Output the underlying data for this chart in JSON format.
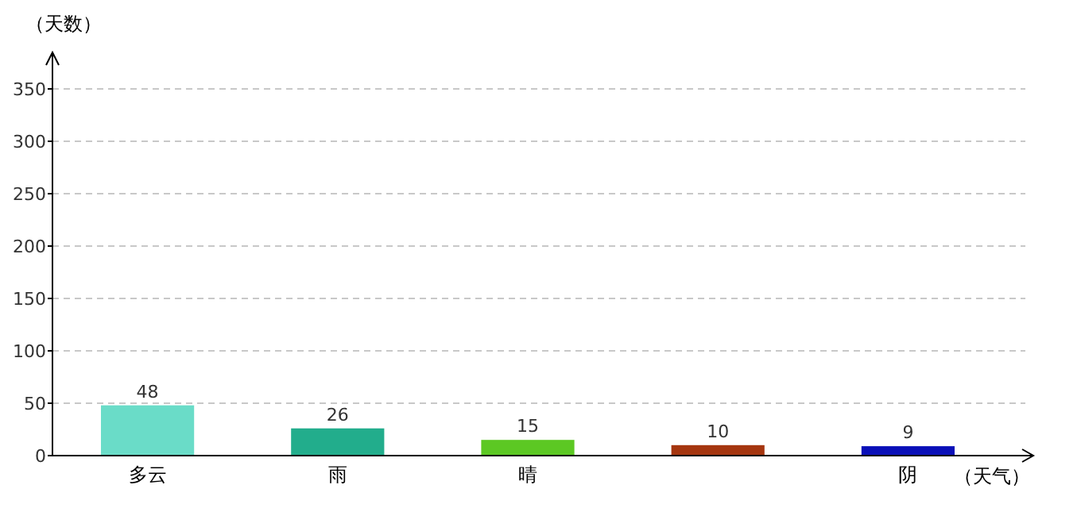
{
  "chart_data": {
    "type": "bar",
    "xlabel": "（天气）",
    "ylabel": "（天数）",
    "categories": [
      "多云",
      "雨",
      "晴",
      null,
      "阴"
    ],
    "values": [
      48,
      26,
      15,
      10,
      9
    ],
    "colors": [
      "#6adcc8",
      "#22ad8c",
      "#5cc823",
      "#a5360f",
      "#0a0fb8"
    ],
    "ylim": [
      0,
      350
    ],
    "yticks": [
      0,
      50,
      100,
      150,
      200,
      250,
      300,
      350
    ],
    "grid": "y",
    "data_labels": true
  }
}
